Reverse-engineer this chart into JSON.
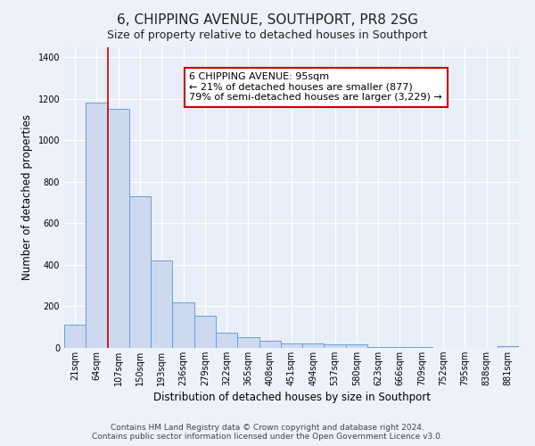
{
  "title": "6, CHIPPING AVENUE, SOUTHPORT, PR8 2SG",
  "subtitle": "Size of property relative to detached houses in Southport",
  "xlabel": "Distribution of detached houses by size in Southport",
  "ylabel": "Number of detached properties",
  "categories": [
    "21sqm",
    "64sqm",
    "107sqm",
    "150sqm",
    "193sqm",
    "236sqm",
    "279sqm",
    "322sqm",
    "365sqm",
    "408sqm",
    "451sqm",
    "494sqm",
    "537sqm",
    "580sqm",
    "623sqm",
    "666sqm",
    "709sqm",
    "752sqm",
    "795sqm",
    "838sqm",
    "881sqm"
  ],
  "values": [
    110,
    1180,
    1150,
    730,
    420,
    220,
    155,
    75,
    50,
    35,
    22,
    20,
    18,
    18,
    5,
    5,
    5,
    0,
    0,
    0,
    8
  ],
  "bar_color": "#ccd9ee",
  "bar_edge_color": "#6b9fd4",
  "vline_x": 1.5,
  "vline_color": "#cc0000",
  "annotation_text": "6 CHIPPING AVENUE: 95sqm\n← 21% of detached houses are smaller (877)\n79% of semi-detached houses are larger (3,229) →",
  "annotation_box_facecolor": "#ffffff",
  "annotation_box_edgecolor": "#cc0000",
  "ylim": [
    0,
    1450
  ],
  "yticks": [
    0,
    200,
    400,
    600,
    800,
    1000,
    1200,
    1400
  ],
  "footer_line1": "Contains HM Land Registry data © Crown copyright and database right 2024.",
  "footer_line2": "Contains public sector information licensed under the Open Government Licence v3.0.",
  "bg_color": "#edf1f9",
  "plot_bg_color": "#e8eef8",
  "title_fontsize": 11,
  "axis_label_fontsize": 8.5,
  "tick_fontsize": 7,
  "footer_fontsize": 6.5,
  "annotation_fontsize": 8
}
